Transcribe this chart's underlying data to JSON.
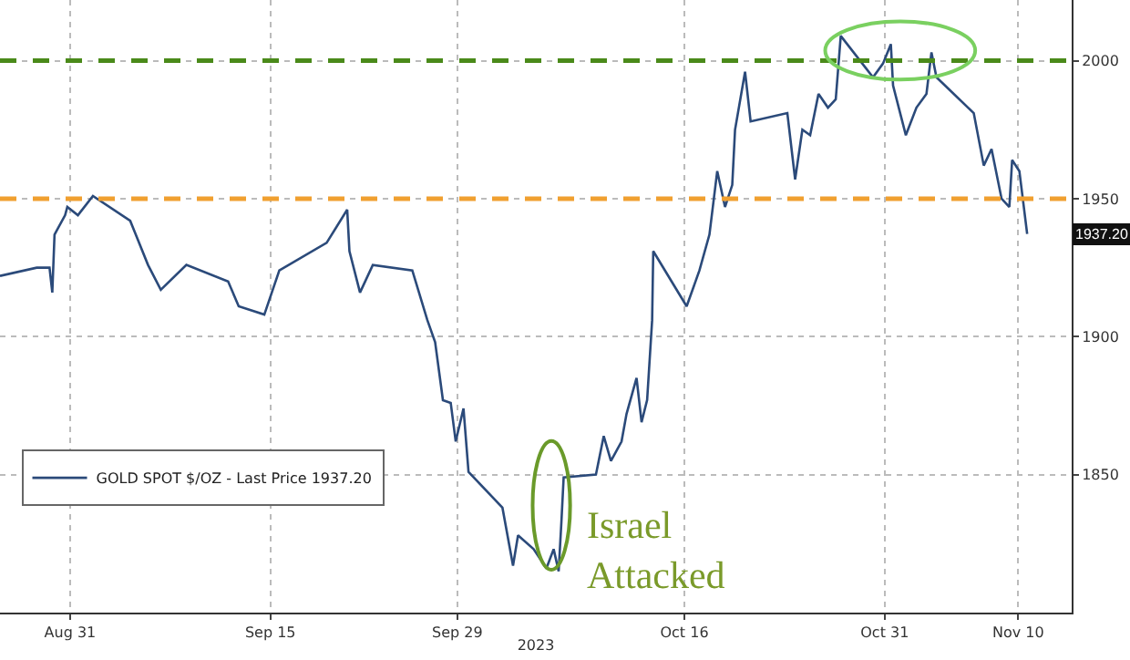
{
  "chart_data": {
    "type": "line",
    "xlabel": "2023",
    "x": [
      "2023-08-25T18:00",
      "2023-08-28T12:00",
      "2023-08-29T11:00",
      "2023-08-29T16:00",
      "2023-08-29T20:00",
      "2023-08-30T15:00",
      "2023-08-30T19:00",
      "2023-08-31T14:00",
      "2023-09-01T17:00",
      "2023-09-04T12:00",
      "2023-09-05T20:00",
      "2023-09-06T19:00",
      "2023-09-08T17:00",
      "2023-09-11T20:00",
      "2023-09-12T15:00",
      "2023-09-14T13:00",
      "2023-09-15T16:00",
      "2023-09-19T05:00",
      "2023-09-20T18:00",
      "2023-09-20T22:00",
      "2023-09-21T17:00",
      "2023-09-22T16:00",
      "2023-09-25T15:00",
      "2023-09-26T18:00",
      "2023-09-27T08:00",
      "2023-09-27T22:00",
      "2023-09-28T12:00",
      "2023-09-28T21:00",
      "2023-09-29T11:00",
      "2023-09-29T20:00",
      "2023-10-02T09:00",
      "2023-10-03T04:00",
      "2023-10-03T13:00",
      "2023-10-04T17:00",
      "2023-10-05T16:00",
      "2023-10-06T05:00",
      "2023-10-06T14:00",
      "2023-10-06T19:00",
      "2023-10-06T23:00",
      "2023-10-09T09:00",
      "2023-10-09T23:00",
      "2023-10-10T12:00",
      "2023-10-11T07:00",
      "2023-10-11T16:00",
      "2023-10-12T10:00",
      "2023-10-12T19:00",
      "2023-10-13T05:00",
      "2023-10-13T14:00",
      "2023-10-13T16:00",
      "2023-10-16T04:00",
      "2023-10-17T03:00",
      "2023-10-17T21:00",
      "2023-10-18T11:00",
      "2023-10-19T01:00",
      "2023-10-19T14:00",
      "2023-10-19T19:00",
      "2023-10-20T13:00",
      "2023-10-20T23:00",
      "2023-10-23T17:00",
      "2023-10-24T07:00",
      "2023-10-24T20:00",
      "2023-10-25T10:00",
      "2023-10-26T01:00",
      "2023-10-26T18:00",
      "2023-10-27T08:00",
      "2023-10-27T17:00",
      "2023-10-30T03:00",
      "2023-10-30T21:00",
      "2023-10-31T11:00",
      "2023-10-31T15:00",
      "2023-11-01T14:00",
      "2023-11-02T09:00",
      "2023-11-03T03:00",
      "2023-11-03T12:00",
      "2023-11-03T21:00",
      "2023-11-06T16:00",
      "2023-11-07T10:00",
      "2023-11-08T00:00",
      "2023-11-08T18:00",
      "2023-11-09T08:00",
      "2023-11-09T13:00",
      "2023-11-10T02:00",
      "2023-11-10T16:00"
    ],
    "series": [
      {
        "name": "GOLD SPOT $/OZ - Last Price 1937.20",
        "color": "#2b4a7a",
        "values": [
          1922,
          1925,
          1925,
          1916,
          1937,
          1944,
          1947,
          1944,
          1951,
          1942,
          1926,
          1917,
          1926,
          1920,
          1911,
          1908,
          1924,
          1934,
          1946,
          1931,
          1916,
          1926,
          1924,
          1906,
          1898,
          1877,
          1876,
          1862,
          1874,
          1851,
          1838,
          1817,
          1828,
          1823,
          1816,
          1823,
          1815,
          1833,
          1849,
          1850,
          1864,
          1855,
          1862,
          1872,
          1885,
          1869,
          1877,
          1906,
          1931,
          1911,
          1924,
          1937,
          1960,
          1947,
          1955,
          1975,
          1996,
          1978,
          1981,
          1957,
          1975,
          1973,
          1988,
          1983,
          1986,
          2009,
          1994,
          1999,
          2006,
          1991,
          1973,
          1983,
          1988,
          2003,
          1994,
          1981,
          1962,
          1968,
          1950,
          1947,
          1964,
          1960,
          1937.2
        ]
      }
    ],
    "xlim": [
      "2023-08-25T18:00",
      "2023-11-14"
    ],
    "xticks": [
      {
        "value": "2023-08-31",
        "label": "Aug 31"
      },
      {
        "value": "2023-09-15",
        "label": "Sep 15"
      },
      {
        "value": "2023-09-29",
        "label": "Sep 29"
      },
      {
        "value": "2023-10-16",
        "label": "Oct 16"
      },
      {
        "value": "2023-10-31",
        "label": "Oct 31"
      },
      {
        "value": "2023-11-10",
        "label": "Nov 10"
      }
    ],
    "ylim": [
      1800,
      2022
    ],
    "yticks": [
      1850,
      1900,
      1950,
      2000
    ],
    "ref_lines": [
      {
        "axis": "y",
        "value": 1950,
        "color": "#f0a030",
        "line_style": "dashed"
      },
      {
        "axis": "y",
        "value": 2000,
        "color": "#4a8a1a",
        "line_style": "dashed"
      }
    ],
    "annotations": [
      "Israel Attacked",
      {
        "text": "1937.20",
        "y": 1937.2
      }
    ],
    "grid": true,
    "legend": "bottom left",
    "marker": "none",
    "line_style": "solid"
  }
}
